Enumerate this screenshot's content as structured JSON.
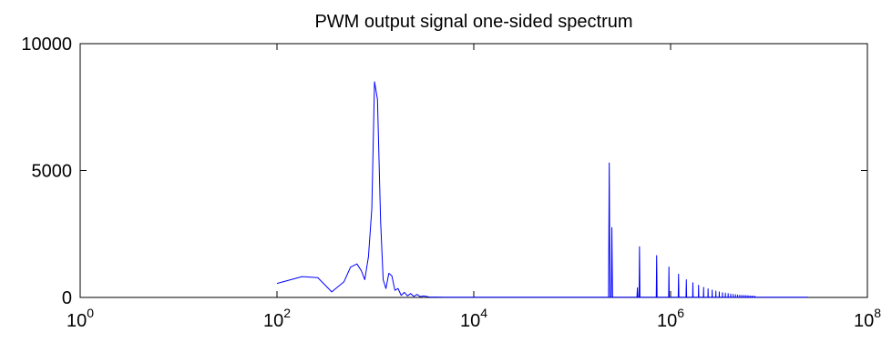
{
  "chart_data": {
    "type": "line",
    "title": "PWM output signal one-sided spectrum",
    "xlabel": "",
    "ylabel": "",
    "x_scale": "log",
    "xlim": [
      1,
      100000000
    ],
    "ylim": [
      0,
      10000
    ],
    "x_ticks": [
      {
        "value": 1,
        "base": "10",
        "exp": "0"
      },
      {
        "value": 100,
        "base": "10",
        "exp": "2"
      },
      {
        "value": 10000,
        "base": "10",
        "exp": "4"
      },
      {
        "value": 1000000,
        "base": "10",
        "exp": "6"
      },
      {
        "value": 100000000,
        "base": "10",
        "exp": "8"
      }
    ],
    "y_ticks": [
      {
        "value": 0,
        "label": "0"
      },
      {
        "value": 5000,
        "label": "5000"
      },
      {
        "value": 10000,
        "label": "10000"
      }
    ],
    "grid": false,
    "legend": "none",
    "series": [
      {
        "color": "#0000ff",
        "points": [
          [
            100,
            550
          ],
          [
            180,
            820
          ],
          [
            260,
            780
          ],
          [
            360,
            220
          ],
          [
            480,
            620
          ],
          [
            560,
            1200
          ],
          [
            650,
            1320
          ],
          [
            720,
            1050
          ],
          [
            780,
            700
          ],
          [
            850,
            1600
          ],
          [
            920,
            3500
          ],
          [
            980,
            8500
          ],
          [
            1050,
            7800
          ],
          [
            1130,
            3000
          ],
          [
            1200,
            700
          ],
          [
            1280,
            350
          ],
          [
            1370,
            950
          ],
          [
            1470,
            850
          ],
          [
            1580,
            280
          ],
          [
            1700,
            350
          ],
          [
            1830,
            80
          ],
          [
            1970,
            200
          ],
          [
            2120,
            60
          ],
          [
            2280,
            150
          ],
          [
            2460,
            40
          ],
          [
            2650,
            120
          ],
          [
            2850,
            30
          ],
          [
            3100,
            60
          ],
          [
            3500,
            20
          ],
          [
            5000,
            10
          ],
          [
            20000,
            10
          ],
          [
            100000,
            10
          ],
          [
            234000,
            10
          ],
          [
            238000,
            5300
          ],
          [
            242000,
            10
          ],
          [
            250000,
            10
          ],
          [
            253000,
            2750
          ],
          [
            257000,
            10
          ],
          [
            455000,
            10
          ],
          [
            460000,
            380
          ],
          [
            465000,
            10
          ],
          [
            478000,
            10
          ],
          [
            483000,
            2000
          ],
          [
            488000,
            10
          ],
          [
            715000,
            10
          ],
          [
            722000,
            1650
          ],
          [
            729000,
            10
          ],
          [
            955000,
            10
          ],
          [
            962000,
            1200
          ],
          [
            969000,
            10
          ],
          [
            1195000,
            10
          ],
          [
            1205000,
            920
          ],
          [
            1215000,
            10
          ],
          [
            1435000,
            10
          ],
          [
            1445000,
            700
          ],
          [
            1455000,
            10
          ],
          [
            1675000,
            10
          ],
          [
            1685000,
            580
          ],
          [
            1695000,
            10
          ],
          [
            1915000,
            10
          ],
          [
            1925000,
            480
          ],
          [
            1935000,
            10
          ],
          [
            2155000,
            10
          ],
          [
            2165000,
            400
          ],
          [
            2175000,
            10
          ],
          [
            2395000,
            10
          ],
          [
            2405000,
            340
          ],
          [
            2415000,
            10
          ],
          [
            2635000,
            10
          ],
          [
            2645000,
            290
          ],
          [
            2655000,
            10
          ],
          [
            2875000,
            10
          ],
          [
            2885000,
            250
          ],
          [
            2895000,
            10
          ],
          [
            3115000,
            10
          ],
          [
            3125000,
            220
          ],
          [
            3135000,
            10
          ],
          [
            3355000,
            10
          ],
          [
            3365000,
            190
          ],
          [
            3375000,
            10
          ],
          [
            3595000,
            10
          ],
          [
            3605000,
            170
          ],
          [
            3615000,
            10
          ],
          [
            3835000,
            10
          ],
          [
            3845000,
            150
          ],
          [
            3855000,
            10
          ],
          [
            4075000,
            10
          ],
          [
            4085000,
            135
          ],
          [
            4095000,
            10
          ],
          [
            4315000,
            10
          ],
          [
            4325000,
            120
          ],
          [
            4335000,
            10
          ],
          [
            4555000,
            10
          ],
          [
            4565000,
            110
          ],
          [
            4575000,
            10
          ],
          [
            4795000,
            10
          ],
          [
            4805000,
            100
          ],
          [
            4815000,
            10
          ],
          [
            5035000,
            10
          ],
          [
            5045000,
            90
          ],
          [
            5055000,
            10
          ],
          [
            5275000,
            10
          ],
          [
            5285000,
            85
          ],
          [
            5295000,
            10
          ],
          [
            5515000,
            10
          ],
          [
            5525000,
            80
          ],
          [
            5535000,
            10
          ],
          [
            5755000,
            10
          ],
          [
            5765000,
            75
          ],
          [
            5775000,
            10
          ],
          [
            5995000,
            10
          ],
          [
            6005000,
            70
          ],
          [
            6015000,
            10
          ],
          [
            6235000,
            10
          ],
          [
            6245000,
            65
          ],
          [
            6255000,
            10
          ],
          [
            6475000,
            10
          ],
          [
            6485000,
            60
          ],
          [
            6495000,
            10
          ],
          [
            6715000,
            10
          ],
          [
            6725000,
            55
          ],
          [
            6735000,
            10
          ],
          [
            6955000,
            10
          ],
          [
            6965000,
            50
          ],
          [
            6975000,
            10
          ],
          [
            7195000,
            10
          ],
          [
            7205000,
            45
          ],
          [
            7215000,
            10
          ],
          [
            8000000,
            10
          ],
          [
            15000000,
            10
          ],
          [
            25000000,
            10
          ]
        ]
      }
    ]
  }
}
